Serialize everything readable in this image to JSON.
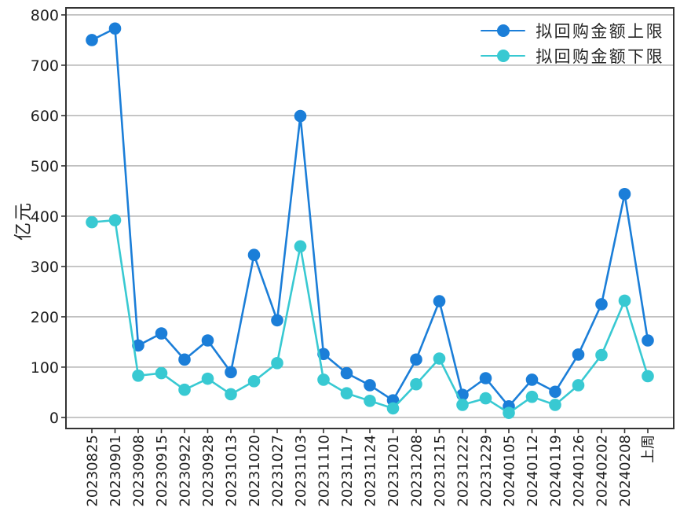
{
  "chart_data": {
    "type": "line",
    "title": "",
    "xlabel": "",
    "ylabel": "亿元",
    "categories": [
      "20230825",
      "20230901",
      "20230908",
      "20230915",
      "20230922",
      "20230928",
      "20231013",
      "20231020",
      "20231027",
      "20231103",
      "20231110",
      "20231117",
      "20231124",
      "20231201",
      "20231208",
      "20231215",
      "20231222",
      "20231229",
      "20240105",
      "20240112",
      "20240119",
      "20240126",
      "20240202",
      "20240208",
      "上周"
    ],
    "series": [
      {
        "name": "拟回购金额上限",
        "color": "#1b7ed8",
        "values": [
          750,
          773,
          143,
          167,
          115,
          153,
          90,
          323,
          193,
          599,
          126,
          88,
          64,
          34,
          115,
          231,
          45,
          78,
          22,
          75,
          51,
          125,
          225,
          444,
          153
        ]
      },
      {
        "name": "拟回购金额下限",
        "color": "#38c9d2",
        "values": [
          388,
          392,
          83,
          88,
          55,
          77,
          46,
          72,
          108,
          340,
          75,
          48,
          33,
          18,
          66,
          117,
          25,
          38,
          9,
          41,
          25,
          64,
          124,
          232,
          82
        ]
      }
    ],
    "yticks": [
      0,
      100,
      200,
      300,
      400,
      500,
      600,
      700,
      800
    ],
    "ylim": [
      -22,
      814
    ],
    "grid": "horizontal-only",
    "legend_position": "upper-right",
    "xtick_rotation": 90,
    "marker": "circle"
  },
  "colors": {
    "background": "#ffffff",
    "spine": "#333333",
    "gridline": "#9b9b9b",
    "tick_text": "#1f1f1f"
  }
}
